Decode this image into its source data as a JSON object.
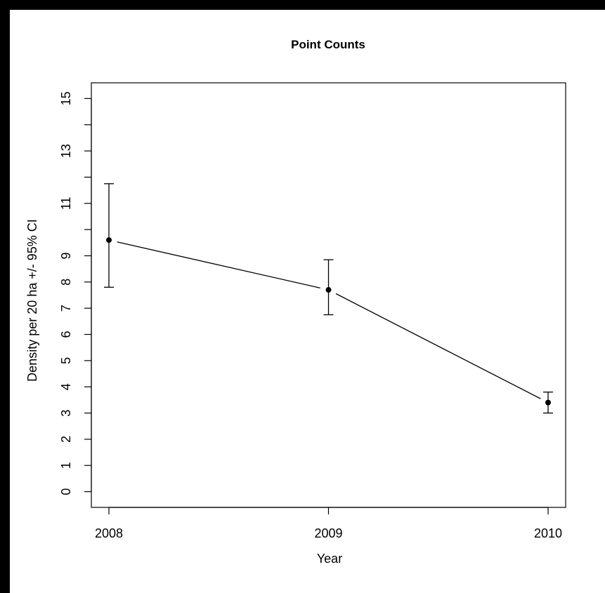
{
  "chart_data": {
    "type": "line",
    "title": "Point Counts",
    "xlabel": "Year",
    "ylabel": "Density per 20 ha +/- 95% CI",
    "categories": [
      "2008",
      "2009",
      "2010"
    ],
    "series": [
      {
        "values": [
          9.6,
          7.7,
          3.4
        ],
        "ci_lower": [
          7.8,
          6.75,
          3.0
        ],
        "ci_upper": [
          11.75,
          8.85,
          3.8
        ]
      }
    ],
    "ylim": [
      -0.6,
      15.6
    ],
    "yticks": [
      0,
      1,
      2,
      3,
      4,
      5,
      6,
      7,
      8,
      9,
      11,
      13,
      15
    ],
    "yminor_ticks": [
      10,
      12,
      14
    ],
    "grid": false,
    "colors": {
      "line": "#000000",
      "point": "#000000",
      "background": "#ffffff",
      "border": "#000000"
    }
  }
}
